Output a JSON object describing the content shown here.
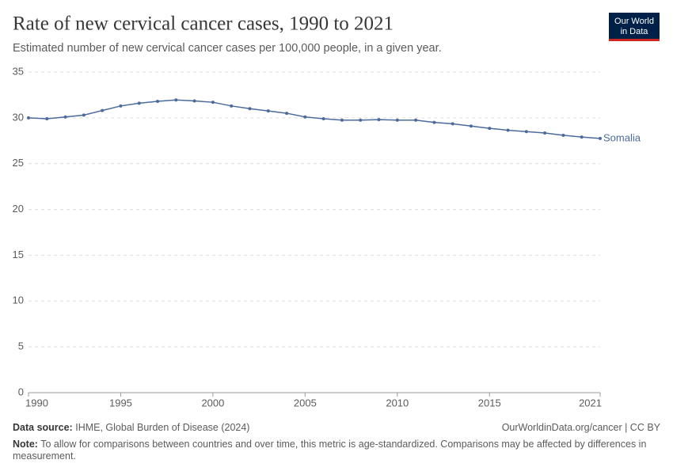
{
  "chart_data": {
    "type": "line",
    "title": "Rate of new cervical cancer cases, 1990 to 2021",
    "subtitle": "Estimated number of new cervical cancer cases per 100,000 people, in a given year.",
    "logo": [
      "Our World",
      "in Data"
    ],
    "x": [
      1990,
      1991,
      1992,
      1993,
      1994,
      1995,
      1996,
      1997,
      1998,
      1999,
      2000,
      2001,
      2002,
      2003,
      2004,
      2005,
      2006,
      2007,
      2008,
      2009,
      2010,
      2011,
      2012,
      2013,
      2014,
      2015,
      2016,
      2017,
      2018,
      2019,
      2020,
      2021
    ],
    "series": [
      {
        "name": "Somalia",
        "color": "#4c6a9c",
        "values": [
          30.0,
          29.9,
          30.1,
          30.3,
          30.8,
          31.3,
          31.6,
          31.8,
          31.95,
          31.85,
          31.7,
          31.3,
          31.0,
          30.75,
          30.5,
          30.1,
          29.9,
          29.75,
          29.75,
          29.8,
          29.75,
          29.75,
          29.5,
          29.35,
          29.1,
          28.85,
          28.65,
          28.5,
          28.35,
          28.1,
          27.9,
          27.75
        ]
      }
    ],
    "xlim": [
      1990,
      2021
    ],
    "xticks": [
      1990,
      1995,
      2000,
      2005,
      2010,
      2015,
      2021
    ],
    "ylim": [
      0,
      35
    ],
    "yticks": [
      0,
      5,
      10,
      15,
      20,
      25,
      30,
      35
    ],
    "grid": true,
    "source_label": "Data source:",
    "source": "IHME, Global Burden of Disease (2024)",
    "credit": "OurWorldinData.org/cancer | CC BY",
    "note_label": "Note:",
    "note": "To allow for comparisons between countries and over time, this metric is age-standardized. Comparisons may be affected by differences in measurement."
  }
}
